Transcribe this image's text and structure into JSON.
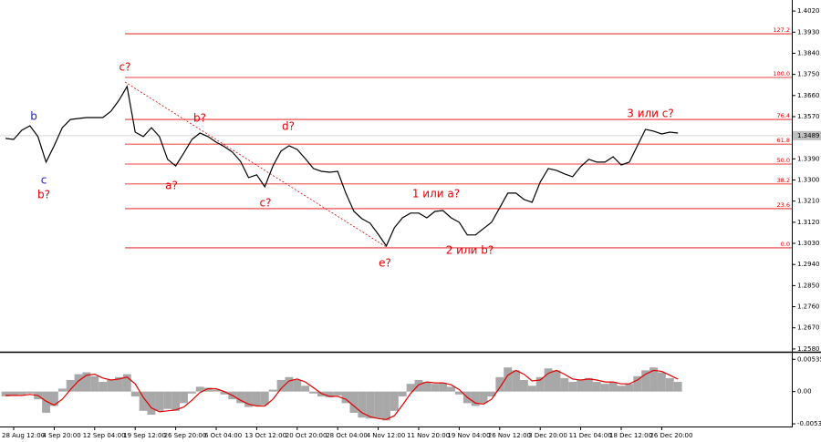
{
  "chart_data": [
    {
      "type": "line",
      "color": "#000000",
      "x": [
        -1,
        0,
        1,
        2,
        3,
        4,
        5,
        6,
        7,
        8,
        9,
        10,
        11,
        12,
        13,
        14,
        15,
        16,
        17,
        18,
        19,
        20,
        21,
        22,
        23,
        24,
        25,
        26,
        27,
        28,
        29,
        30,
        31,
        32,
        33,
        34,
        35,
        36,
        37,
        38,
        39,
        40,
        41,
        42,
        43,
        44,
        45,
        46,
        47,
        48,
        49,
        50,
        51,
        52,
        53,
        54,
        55,
        56,
        57,
        58,
        59,
        60,
        61,
        62,
        63,
        64,
        65,
        66,
        67,
        68,
        69,
        70,
        71,
        72,
        73,
        74,
        75,
        76,
        77,
        78,
        79,
        80,
        81,
        82
      ],
      "values": [
        1.3477,
        1.3473,
        1.3512,
        1.3531,
        1.3485,
        1.3376,
        1.3446,
        1.3523,
        1.3558,
        1.3562,
        1.3566,
        1.3566,
        1.3566,
        1.3593,
        1.364,
        1.3698,
        1.3504,
        1.3485,
        1.3523,
        1.3485,
        1.3388,
        1.336,
        1.3415,
        1.3473,
        1.35,
        1.3485,
        1.3461,
        1.3442,
        1.3419,
        1.338,
        1.331,
        1.3322,
        1.3271,
        1.336,
        1.3423,
        1.3446,
        1.343,
        1.3391,
        1.3349,
        1.3337,
        1.3333,
        1.3337,
        1.3244,
        1.3166,
        1.3135,
        1.3116,
        1.3069,
        1.3019,
        1.3097,
        1.3139,
        1.3159,
        1.3159,
        1.3139,
        1.3166,
        1.317,
        1.3139,
        1.312,
        1.3066,
        1.3066,
        1.3093,
        1.312,
        1.3182,
        1.3244,
        1.3244,
        1.3217,
        1.3205,
        1.3291,
        1.3349,
        1.3341,
        1.3326,
        1.3314,
        1.3357,
        1.3388,
        1.3376,
        1.3376,
        1.3399,
        1.3364,
        1.3376,
        1.3446,
        1.3516,
        1.3508,
        1.3496,
        1.3504,
        1.35
      ],
      "xlim": [
        -1.69,
        96.06
      ],
      "xticks": [
        {
          "value": 0,
          "label": "28 Aug 12:00"
        },
        {
          "value": 5,
          "label": "4 Sep 20:00"
        },
        {
          "value": 10,
          "label": "12 Sep 04:00"
        },
        {
          "value": 15,
          "label": "19 Sep 12:00"
        },
        {
          "value": 20,
          "label": "26 Sep 20:00"
        },
        {
          "value": 25,
          "label": "6 Oct 04:00"
        },
        {
          "value": 30,
          "label": "13 Oct 12:00"
        },
        {
          "value": 35,
          "label": "20 Oct 20:00"
        },
        {
          "value": 40,
          "label": "28 Oct 04:00"
        },
        {
          "value": 45,
          "label": "4 Nov 12:00"
        },
        {
          "value": 50,
          "label": "11 Nov 20:00"
        },
        {
          "value": 55,
          "label": "19 Nov 04:00"
        },
        {
          "value": 60,
          "label": "26 Nov 12:00"
        },
        {
          "value": 65,
          "label": "3 Dec 20:00"
        },
        {
          "value": 70,
          "label": "11 Dec 04:00"
        },
        {
          "value": 75,
          "label": "18 Dec 12:00"
        },
        {
          "value": 80,
          "label": "26 Dec 20:00"
        }
      ],
      "ylim": [
        1.2568,
        1.4067
      ],
      "yticks": [
        {
          "value": 1.402,
          "label": "1.4020"
        },
        {
          "value": 1.393,
          "label": "1.3930"
        },
        {
          "value": 1.384,
          "label": "1.3840"
        },
        {
          "value": 1.375,
          "label": "1.3750"
        },
        {
          "value": 1.366,
          "label": "1.3660"
        },
        {
          "value": 1.357,
          "label": "1.3570"
        },
        {
          "value": 1.339,
          "label": "1.3390"
        },
        {
          "value": 1.33,
          "label": "1.3300"
        },
        {
          "value": 1.321,
          "label": "1.3210"
        },
        {
          "value": 1.312,
          "label": "1.3120"
        },
        {
          "value": 1.303,
          "label": "1.3030"
        },
        {
          "value": 1.294,
          "label": "1.2940"
        },
        {
          "value": 1.285,
          "label": "1.2850"
        },
        {
          "value": 1.276,
          "label": "1.2760"
        },
        {
          "value": 1.267,
          "label": "1.2670"
        },
        {
          "value": 1.258,
          "label": "1.2580"
        }
      ],
      "last_price": 1.3489,
      "fib_color": "#e00000",
      "fib_levels": [
        {
          "ratio": "0.0",
          "price": 1.3011
        },
        {
          "ratio": "23.6",
          "price": 1.3178
        },
        {
          "ratio": "38.2",
          "price": 1.3283
        },
        {
          "ratio": "50.0",
          "price": 1.3368
        },
        {
          "ratio": "61.8",
          "price": 1.3453
        },
        {
          "ratio": "76.4",
          "price": 1.3558
        },
        {
          "ratio": "100.0",
          "price": 1.3737
        },
        {
          "ratio": "127.2",
          "price": 1.3923
        }
      ],
      "annotations": [
        {
          "text": "c?",
          "color": "#e00000"
        },
        {
          "text": "b",
          "color": "#2020c0"
        },
        {
          "text": "c",
          "color": "#2020c0"
        },
        {
          "text": "b?",
          "color": "#e00000"
        },
        {
          "text": "a?",
          "color": "#e00000"
        },
        {
          "text": "b?",
          "color": "#e00000"
        },
        {
          "text": "d?",
          "color": "#e00000"
        },
        {
          "text": "c?",
          "color": "#e00000"
        },
        {
          "text": "e?",
          "color": "#e00000"
        },
        {
          "text": "1 или a?",
          "color": "#e00000"
        },
        {
          "text": "2 или b?",
          "color": "#e00000"
        },
        {
          "text": "3 или c?",
          "color": "#e00000"
        }
      ]
    },
    {
      "type": "macd",
      "ylim": [
        -0.0058,
        0.0063
      ],
      "yticks": [
        0.00535,
        {
          "value": 0,
          "label": "0.00"
        },
        -0.00535
      ],
      "histogram": {
        "color": "#a8a8a8",
        "values": [
          -0.0008,
          -0.00064,
          -0.00048,
          -0.00032,
          -0.00128,
          -0.00352,
          -0.0024,
          0.00048,
          0.00192,
          0.00288,
          0.0032,
          0.00256,
          0.0016,
          0.00192,
          0.0024,
          0.00288,
          -0.0008,
          -0.0032,
          -0.00384,
          -0.0032,
          -0.00288,
          -0.0032,
          -0.00192,
          -0.00032,
          0.0008,
          0.00064,
          0.00032,
          -0.00048,
          -0.00128,
          -0.00192,
          -0.00256,
          -0.0024,
          -0.00224,
          0.00032,
          0.00192,
          0.0024,
          0.00192,
          0.00096,
          -0.00032,
          -0.0008,
          -0.00096,
          -0.00064,
          -0.00192,
          -0.00352,
          -0.00432,
          -0.00448,
          -0.00448,
          -0.0048,
          -0.0032,
          -0.0008,
          0.00128,
          0.00192,
          0.0016,
          0.00128,
          0.00144,
          0.0008,
          -0.00048,
          -0.00192,
          -0.0024,
          -0.00192,
          -0.0008,
          0.0024,
          0.004,
          0.00352,
          0.00192,
          0.00096,
          0.0024,
          0.00384,
          0.00352,
          0.00224,
          0.0016,
          0.00192,
          0.00224,
          0.0016,
          0.00128,
          0.0016,
          0.00096,
          0.00128,
          0.00256,
          0.00352,
          0.004,
          0.0032,
          0.00224,
          0.0016
        ]
      },
      "signal": {
        "color": "#e00000",
        "values": [
          -0.00064,
          -0.00064,
          -0.00064,
          -0.00048,
          -0.00064,
          -0.0016,
          -0.00224,
          -0.00128,
          0.00032,
          0.00176,
          0.00272,
          0.00288,
          0.00224,
          0.00192,
          0.00208,
          0.0024,
          0.00128,
          -0.00096,
          -0.00272,
          -0.00336,
          -0.0032,
          -0.00304,
          -0.00256,
          -0.00144,
          -0.00016,
          0.00048,
          0.00048,
          0,
          -0.00064,
          -0.00144,
          -0.00208,
          -0.0024,
          -0.0024,
          -0.00128,
          0.00048,
          0.00176,
          0.00208,
          0.0016,
          0.00064,
          -0.00032,
          -0.0008,
          -0.0008,
          -0.00128,
          -0.0024,
          -0.00352,
          -0.00416,
          -0.00448,
          -0.00464,
          -0.004,
          -0.00224,
          -0.00032,
          0.00112,
          0.0016,
          0.00144,
          0.00144,
          0.00112,
          0.00032,
          -0.00096,
          -0.00192,
          -0.00208,
          -0.00128,
          0.00064,
          0.00272,
          0.00352,
          0.00288,
          0.00176,
          0.00192,
          0.00304,
          0.00352,
          0.00288,
          0.00208,
          0.00192,
          0.00208,
          0.00192,
          0.0016,
          0.0016,
          0.00128,
          0.00128,
          0.00192,
          0.00288,
          0.00352,
          0.00336,
          0.00272,
          0.00208
        ]
      }
    }
  ]
}
